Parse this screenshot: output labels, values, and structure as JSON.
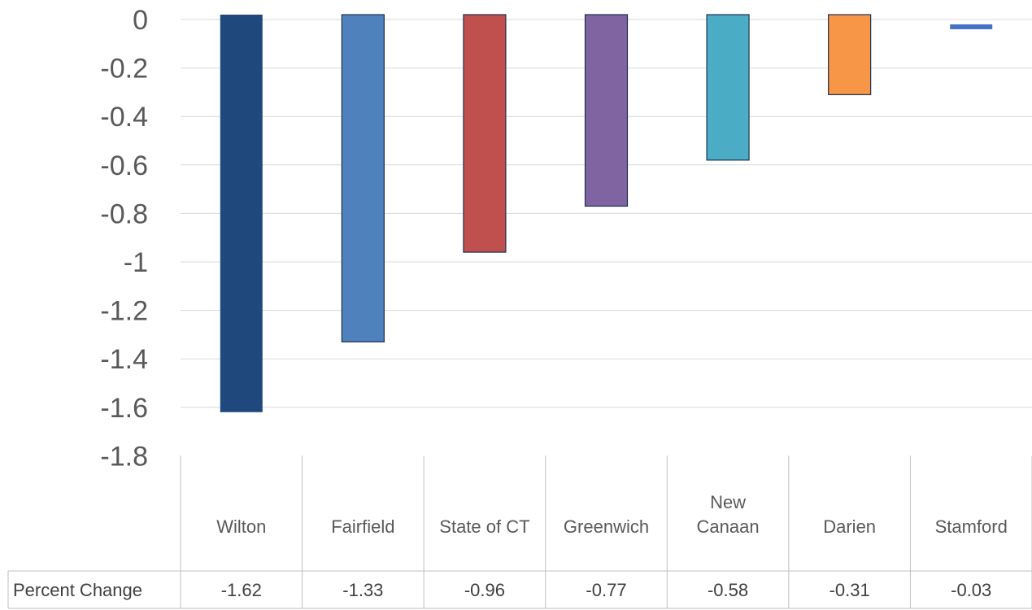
{
  "chart_data": {
    "type": "bar",
    "categories": [
      "Wilton",
      "Fairfield",
      "State of CT",
      "Greenwich",
      "New Canaan",
      "Darien",
      "Stamford"
    ],
    "series": [
      {
        "name": "Percent Change",
        "values": [
          -1.62,
          -1.33,
          -0.96,
          -0.77,
          -0.58,
          -0.31,
          -0.03
        ]
      }
    ],
    "value_labels": [
      "-1.62",
      "-1.33",
      "-0.96",
      "-0.77",
      "-0.58",
      "-0.31",
      "-0.03"
    ],
    "ylim": [
      -1.8,
      0
    ],
    "yticks": [
      "0",
      "-0.2",
      "-0.4",
      "-0.6",
      "-0.8",
      "-1",
      "-1.2",
      "-1.4",
      "-1.6",
      "-1.8"
    ],
    "ytick_values": [
      0,
      -0.2,
      -0.4,
      -0.6,
      -0.8,
      -1,
      -1.2,
      -1.4,
      -1.6,
      -1.8
    ],
    "bar_colors": [
      "#1f497d",
      "#4f81bd",
      "#c0504d",
      "#8064a2",
      "#4bacc6",
      "#f79646",
      "#4472c4"
    ],
    "grid": true,
    "legend": "data table below chart",
    "table_row_label": "Percent Change"
  }
}
